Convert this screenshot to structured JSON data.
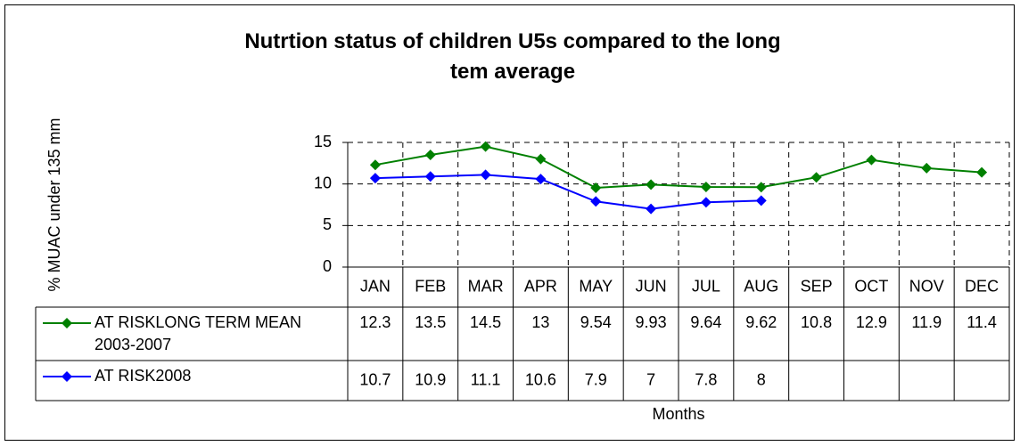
{
  "chart_data": {
    "type": "line",
    "title": "Nutrtion status of children U5s compared to the long tem average",
    "y_label": "% MUAC under 135 mm",
    "x_label": "Months",
    "categories": [
      "JAN",
      "FEB",
      "MAR",
      "APR",
      "MAY",
      "JUN",
      "JUL",
      "AUG",
      "SEP",
      "OCT",
      "NOV",
      "DEC"
    ],
    "series": [
      {
        "name": "AT RISKLONG TERM MEAN 2003-2007",
        "color": "#008000",
        "values": [
          12.3,
          13.5,
          14.5,
          13,
          9.54,
          9.93,
          9.64,
          9.62,
          10.8,
          12.9,
          11.9,
          11.4
        ]
      },
      {
        "name": "AT RISK2008",
        "color": "#0000ff",
        "values": [
          10.7,
          10.9,
          11.1,
          10.6,
          7.9,
          7,
          7.8,
          8,
          null,
          null,
          null,
          null
        ]
      }
    ],
    "ylim": [
      0,
      15
    ],
    "yticks": [
      0,
      5,
      10,
      15
    ],
    "grid": true,
    "legend": "data-table"
  }
}
